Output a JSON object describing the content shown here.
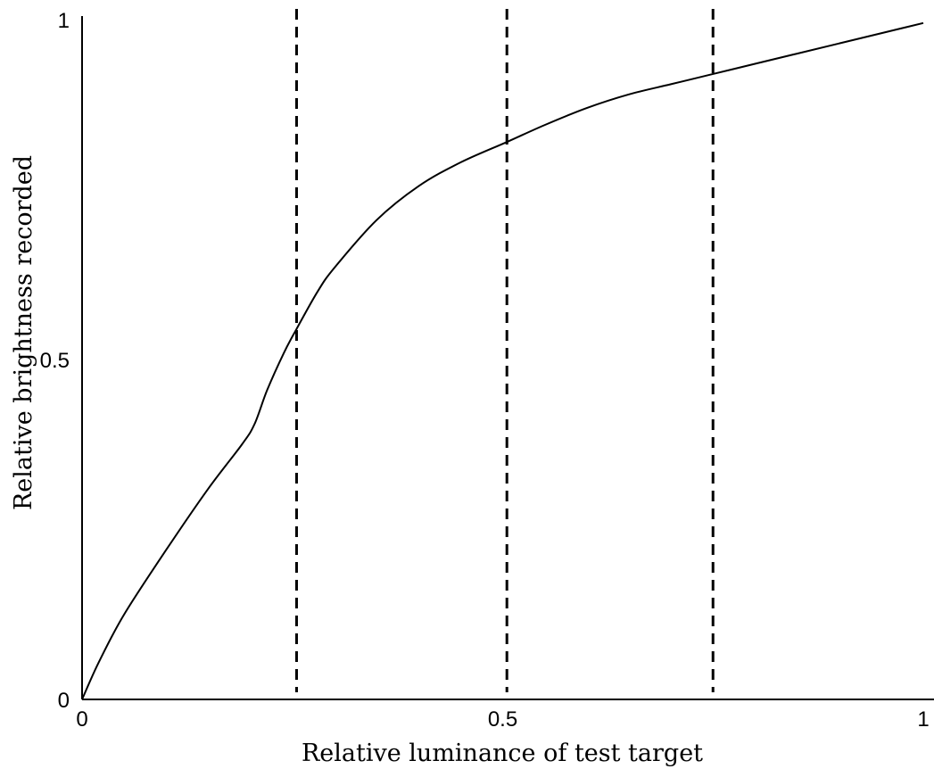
{
  "chart_data": {
    "type": "line",
    "xlabel": "Relative luminance of test target",
    "ylabel": "Relative brightness recorded",
    "xlim": [
      0,
      1
    ],
    "ylim": [
      0,
      1
    ],
    "x_ticks": [
      {
        "value": 0,
        "label": "0"
      },
      {
        "value": 0.5,
        "label": "0.5"
      },
      {
        "value": 1,
        "label": "1"
      }
    ],
    "y_ticks": [
      {
        "value": 0,
        "label": "0"
      },
      {
        "value": 0.5,
        "label": "0.5"
      },
      {
        "value": 1,
        "label": "1"
      }
    ],
    "grid": false,
    "legend": "none",
    "reference_lines": [
      {
        "orientation": "vertical",
        "x": 0.255,
        "style": "dashed"
      },
      {
        "orientation": "vertical",
        "x": 0.505,
        "style": "dashed"
      },
      {
        "orientation": "vertical",
        "x": 0.75,
        "style": "dashed"
      }
    ],
    "series": [
      {
        "x": [
          0,
          0.02,
          0.05,
          0.1,
          0.15,
          0.19,
          0.205,
          0.22,
          0.24,
          0.255,
          0.28,
          0.3,
          0.35,
          0.4,
          0.45,
          0.505,
          0.55,
          0.6,
          0.65,
          0.7,
          0.75,
          0.8,
          0.85,
          0.9,
          0.95,
          1.0
        ],
        "y": [
          0,
          0.055,
          0.125,
          0.22,
          0.31,
          0.375,
          0.405,
          0.455,
          0.51,
          0.545,
          0.6,
          0.635,
          0.705,
          0.755,
          0.79,
          0.82,
          0.845,
          0.87,
          0.89,
          0.905,
          0.92,
          0.935,
          0.95,
          0.965,
          0.98,
          0.995
        ],
        "color": "#000000"
      }
    ]
  }
}
